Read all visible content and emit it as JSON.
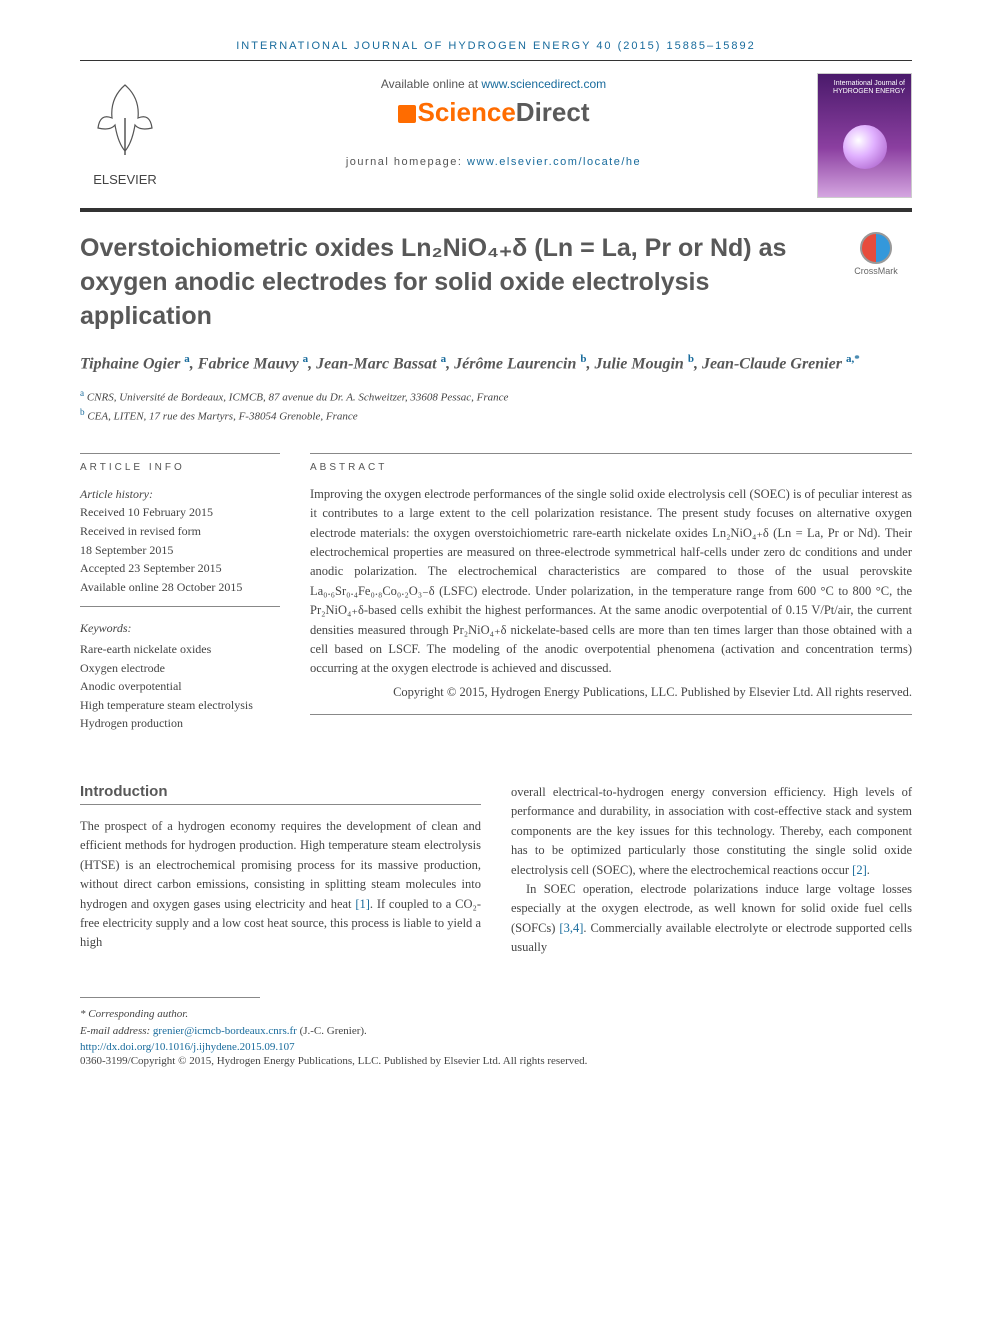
{
  "header": {
    "journal_ref": "INTERNATIONAL JOURNAL OF HYDROGEN ENERGY 40 (2015) 15885–15892",
    "available_prefix": "Available online at ",
    "available_url": "www.sciencedirect.com",
    "sd_logo_orange": "Science",
    "sd_logo_dark": "Direct",
    "homepage_prefix": "journal homepage: ",
    "homepage_url": "www.elsevier.com/locate/he",
    "elsevier": "ELSEVIER",
    "cover_text": "International Journal of\nHYDROGEN\nENERGY"
  },
  "crossmark": "CrossMark",
  "title": "Overstoichiometric oxides Ln₂NiO₄₊δ (Ln = La, Pr or Nd) as oxygen anodic electrodes for solid oxide electrolysis application",
  "authors_html": "Tiphaine Ogier <sup>a</sup>, Fabrice Mauvy <sup>a</sup>, Jean-Marc Bassat <sup>a</sup>, Jérôme Laurencin <sup>b</sup>, Julie Mougin <sup>b</sup>, Jean-Claude Grenier <sup>a,*</sup>",
  "affiliations": {
    "a": "CNRS, Université de Bordeaux, ICMCB, 87 avenue du Dr. A. Schweitzer, 33608 Pessac, France",
    "b": "CEA, LITEN, 17 rue des Martyrs, F-38054 Grenoble, France"
  },
  "info": {
    "head": "ARTICLE INFO",
    "history_label": "Article history:",
    "received": "Received 10 February 2015",
    "revised1": "Received in revised form",
    "revised2": "18 September 2015",
    "accepted": "Accepted 23 September 2015",
    "online": "Available online 28 October 2015",
    "kw_head": "Keywords:",
    "kw": [
      "Rare-earth nickelate oxides",
      "Oxygen electrode",
      "Anodic overpotential",
      "High temperature steam electrolysis",
      "Hydrogen production"
    ]
  },
  "abstract": {
    "head": "ABSTRACT",
    "text": "Improving the oxygen electrode performances of the single solid oxide electrolysis cell (SOEC) is of peculiar interest as it contributes to a large extent to the cell polarization resistance. The present study focuses on alternative oxygen electrode materials: the oxygen overstoichiometric rare-earth nickelate oxides Ln₂NiO₄₊δ (Ln = La, Pr or Nd). Their electrochemical properties are measured on three-electrode symmetrical half-cells under zero dc conditions and under anodic polarization. The electrochemical characteristics are compared to those of the usual perovskite La₀.₆Sr₀.₄Fe₀.₈Co₀.₂O₃₋δ (LSFC) electrode. Under polarization, in the temperature range from 600 °C to 800 °C, the Pr₂NiO₄₊δ-based cells exhibit the highest performances. At the same anodic overpotential of 0.15 V/Pt/air, the current densities measured through Pr₂NiO₄₊δ nickelate-based cells are more than ten times larger than those obtained with a cell based on LSCF. The modeling of the anodic overpotential phenomena (activation and concentration terms) occurring at the oxygen electrode is achieved and discussed.",
    "copyright": "Copyright © 2015, Hydrogen Energy Publications, LLC. Published by Elsevier Ltd. All rights reserved."
  },
  "body": {
    "intro_head": "Introduction",
    "col1": "The prospect of a hydrogen economy requires the development of clean and efficient methods for hydrogen production. High temperature steam electrolysis (HTSE) is an electrochemical promising process for its massive production, without direct carbon emissions, consisting in splitting steam molecules into hydrogen and oxygen gases using electricity and heat [1]. If coupled to a CO₂-free electricity supply and a low cost heat source, this process is liable to yield a high",
    "col2_p1": "overall electrical-to-hydrogen energy conversion efficiency. High levels of performance and durability, in association with cost-effective stack and system components are the key issues for this technology. Thereby, each component has to be optimized particularly those constituting the single solid oxide electrolysis cell (SOEC), where the electrochemical reactions occur [2].",
    "col2_p2": "In SOEC operation, electrode polarizations induce large voltage losses especially at the oxygen electrode, as well known for solid oxide fuel cells (SOFCs) [3,4]. Commercially available electrolyte or electrode supported cells usually"
  },
  "footer": {
    "corr": "* Corresponding author.",
    "email_label": "E-mail address: ",
    "email": "grenier@icmcb-bordeaux.cnrs.fr",
    "email_suffix": " (J.-C. Grenier).",
    "doi": "http://dx.doi.org/10.1016/j.ijhydene.2015.09.107",
    "bottom": "0360-3199/Copyright © 2015, Hydrogen Energy Publications, LLC. Published by Elsevier Ltd. All rights reserved."
  },
  "colors": {
    "link": "#186b9c",
    "heading": "#585858",
    "orange": "#ff6c00"
  }
}
